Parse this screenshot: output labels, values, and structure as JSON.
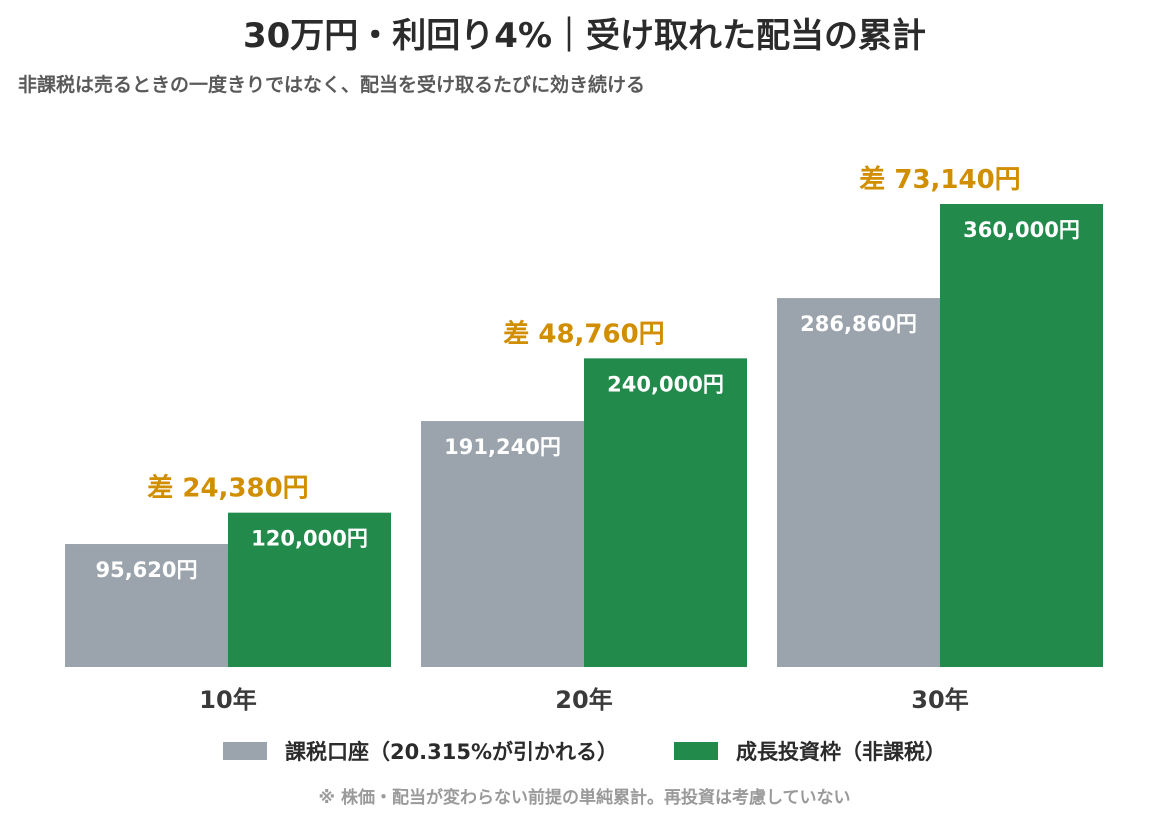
{
  "title": "30万円・利回り4%｜受け取れた配当の累計",
  "subtitle": "非課税は売るときの一度きりではなく、配当を受け取るたびに効き続ける",
  "note": "※ 株価・配当が変わらない前提の単純累計。再投資は考慮していない",
  "colors": {
    "taxable": "#9ba4ac",
    "nisa": "#228b4c",
    "diff": "#d08e00",
    "axis_text": "#3a3a3a"
  },
  "chart_data": {
    "type": "bar",
    "categories": [
      "10年",
      "20年",
      "30年"
    ],
    "series": [
      {
        "name": "課税口座（20.315%が引かれる）",
        "values": [
          95620,
          191240,
          286860
        ],
        "labels": [
          "95,620円",
          "191,240円",
          "286,860円"
        ]
      },
      {
        "name": "成長投資枠（非課税）",
        "values": [
          120000,
          240000,
          360000
        ],
        "labels": [
          "120,000円",
          "240,000円",
          "360,000円"
        ]
      }
    ],
    "differences": [
      24380,
      48760,
      73140
    ],
    "difference_labels": [
      "差 24,380円",
      "差 48,760円",
      "差 73,140円"
    ],
    "ylim": [
      0,
      360000
    ],
    "grid": false,
    "legend": "bottom"
  }
}
